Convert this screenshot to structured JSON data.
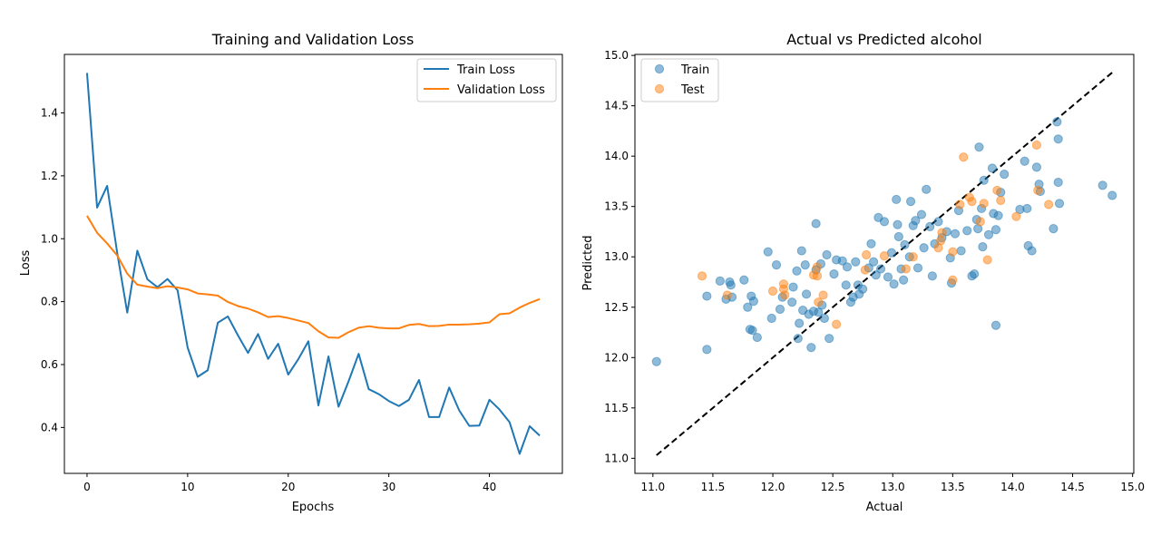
{
  "chart_data": [
    {
      "type": "line",
      "title": "Training and Validation Loss",
      "xlabel": "Epochs",
      "ylabel": "Loss",
      "xlim": [
        -2.25,
        47.25
      ],
      "ylim": [
        0.254,
        1.586
      ],
      "xticks": [
        0,
        10,
        20,
        30,
        40
      ],
      "yticks": [
        0.4,
        0.6,
        0.8,
        1.0,
        1.2,
        1.4
      ],
      "xtick_labels": [
        "0",
        "10",
        "20",
        "30",
        "40"
      ],
      "ytick_labels": [
        "0.4",
        "0.6",
        "0.8",
        "1.0",
        "1.2",
        "1.4"
      ],
      "legend_position": "top-right",
      "x": [
        0,
        1,
        2,
        3,
        4,
        5,
        6,
        7,
        8,
        9,
        10,
        11,
        12,
        13,
        14,
        15,
        16,
        17,
        18,
        19,
        20,
        21,
        22,
        23,
        24,
        25,
        26,
        27,
        28,
        29,
        30,
        31,
        32,
        33,
        34,
        35,
        36,
        37,
        38,
        39,
        40,
        41,
        42,
        43,
        44,
        45
      ],
      "series": [
        {
          "name": "Train Loss",
          "color": "#1f77b4",
          "values": [
            1.527,
            1.099,
            1.168,
            0.955,
            0.765,
            0.962,
            0.871,
            0.846,
            0.872,
            0.836,
            0.654,
            0.561,
            0.582,
            0.733,
            0.753,
            0.693,
            0.637,
            0.697,
            0.618,
            0.666,
            0.568,
            0.617,
            0.674,
            0.47,
            0.626,
            0.466,
            0.547,
            0.634,
            0.522,
            0.506,
            0.484,
            0.468,
            0.488,
            0.551,
            0.433,
            0.433,
            0.527,
            0.454,
            0.405,
            0.406,
            0.488,
            0.457,
            0.417,
            0.316,
            0.404,
            0.374
          ]
        },
        {
          "name": "Validation Loss",
          "color": "#ff7f0e",
          "values": [
            1.073,
            1.019,
            0.985,
            0.947,
            0.889,
            0.854,
            0.848,
            0.843,
            0.849,
            0.845,
            0.839,
            0.826,
            0.823,
            0.819,
            0.799,
            0.786,
            0.778,
            0.766,
            0.751,
            0.754,
            0.748,
            0.74,
            0.732,
            0.706,
            0.686,
            0.685,
            0.703,
            0.717,
            0.722,
            0.717,
            0.715,
            0.715,
            0.726,
            0.729,
            0.722,
            0.723,
            0.727,
            0.727,
            0.728,
            0.73,
            0.734,
            0.76,
            0.763,
            0.781,
            0.796,
            0.808
          ]
        }
      ]
    },
    {
      "type": "scatter",
      "title": "Actual vs Predicted alcohol",
      "xlabel": "Actual",
      "ylabel": "Predicted",
      "xlim": [
        10.85,
        15.01
      ],
      "ylim": [
        10.85,
        15.01
      ],
      "xticks": [
        11.0,
        11.5,
        12.0,
        12.5,
        13.0,
        13.5,
        14.0,
        14.5,
        15.0
      ],
      "yticks": [
        11.0,
        11.5,
        12.0,
        12.5,
        13.0,
        13.5,
        14.0,
        14.5,
        15.0
      ],
      "xtick_labels": [
        "11.0",
        "11.5",
        "12.0",
        "12.5",
        "13.0",
        "13.5",
        "14.0",
        "14.5",
        "15.0"
      ],
      "ytick_labels": [
        "11.0",
        "11.5",
        "12.0",
        "12.5",
        "13.0",
        "13.5",
        "14.0",
        "14.5",
        "15.0"
      ],
      "legend_position": "top-left",
      "reference_line": {
        "from": [
          11.03,
          11.03
        ],
        "to": [
          14.83,
          14.83
        ],
        "style": "dashed",
        "color": "#000000"
      },
      "series": [
        {
          "name": "Train",
          "color": "#1f77b4",
          "points": [
            [
              11.03,
              11.96
            ],
            [
              11.45,
              12.08
            ],
            [
              11.45,
              12.61
            ],
            [
              11.56,
              12.76
            ],
            [
              11.61,
              12.58
            ],
            [
              11.64,
              12.75
            ],
            [
              11.65,
              12.72
            ],
            [
              11.66,
              12.6
            ],
            [
              11.76,
              12.77
            ],
            [
              11.79,
              12.5
            ],
            [
              11.81,
              12.28
            ],
            [
              11.82,
              12.61
            ],
            [
              11.83,
              12.27
            ],
            [
              11.84,
              12.56
            ],
            [
              11.87,
              12.2
            ],
            [
              11.96,
              13.05
            ],
            [
              11.99,
              12.39
            ],
            [
              12.03,
              12.92
            ],
            [
              12.06,
              12.48
            ],
            [
              12.08,
              12.6
            ],
            [
              12.16,
              12.55
            ],
            [
              12.17,
              12.7
            ],
            [
              12.2,
              12.86
            ],
            [
              12.21,
              12.19
            ],
            [
              12.22,
              12.34
            ],
            [
              12.24,
              13.06
            ],
            [
              12.25,
              12.47
            ],
            [
              12.27,
              12.92
            ],
            [
              12.28,
              12.63
            ],
            [
              12.3,
              12.43
            ],
            [
              12.32,
              12.1
            ],
            [
              12.34,
              12.46
            ],
            [
              12.36,
              13.33
            ],
            [
              12.36,
              12.87
            ],
            [
              12.38,
              12.45
            ],
            [
              12.4,
              12.93
            ],
            [
              12.41,
              12.52
            ],
            [
              12.43,
              12.39
            ],
            [
              12.45,
              13.02
            ],
            [
              12.47,
              12.19
            ],
            [
              12.51,
              12.83
            ],
            [
              12.53,
              12.97
            ],
            [
              12.58,
              12.96
            ],
            [
              12.61,
              12.72
            ],
            [
              12.62,
              12.9
            ],
            [
              12.65,
              12.55
            ],
            [
              12.67,
              12.6
            ],
            [
              12.69,
              12.95
            ],
            [
              12.71,
              12.72
            ],
            [
              12.72,
              12.63
            ],
            [
              12.75,
              12.68
            ],
            [
              12.8,
              12.89
            ],
            [
              12.82,
              13.13
            ],
            [
              12.84,
              12.95
            ],
            [
              12.86,
              12.82
            ],
            [
              12.88,
              13.39
            ],
            [
              12.9,
              12.88
            ],
            [
              12.93,
              13.35
            ],
            [
              12.96,
              12.8
            ],
            [
              12.99,
              13.04
            ],
            [
              13.01,
              12.73
            ],
            [
              13.03,
              13.57
            ],
            [
              13.04,
              13.32
            ],
            [
              13.05,
              13.2
            ],
            [
              13.07,
              12.88
            ],
            [
              13.09,
              12.77
            ],
            [
              13.1,
              13.12
            ],
            [
              13.14,
              13.0
            ],
            [
              13.15,
              13.55
            ],
            [
              13.17,
              13.31
            ],
            [
              13.19,
              13.36
            ],
            [
              13.21,
              12.89
            ],
            [
              13.24,
              13.42
            ],
            [
              13.26,
              13.09
            ],
            [
              13.28,
              13.67
            ],
            [
              13.31,
              13.3
            ],
            [
              13.33,
              12.81
            ],
            [
              13.35,
              13.13
            ],
            [
              13.38,
              13.35
            ],
            [
              13.41,
              13.19
            ],
            [
              13.45,
              13.25
            ],
            [
              13.48,
              12.99
            ],
            [
              13.49,
              12.74
            ],
            [
              13.52,
              13.23
            ],
            [
              13.55,
              13.46
            ],
            [
              13.57,
              13.06
            ],
            [
              13.62,
              13.26
            ],
            [
              13.66,
              12.81
            ],
            [
              13.68,
              12.83
            ],
            [
              13.7,
              13.37
            ],
            [
              13.71,
              13.28
            ],
            [
              13.72,
              14.09
            ],
            [
              13.74,
              13.48
            ],
            [
              13.75,
              13.1
            ],
            [
              13.76,
              13.76
            ],
            [
              13.8,
              13.22
            ],
            [
              13.83,
              13.88
            ],
            [
              13.84,
              13.43
            ],
            [
              13.86,
              13.27
            ],
            [
              13.86,
              12.32
            ],
            [
              13.88,
              13.41
            ],
            [
              13.9,
              13.64
            ],
            [
              13.93,
              13.82
            ],
            [
              14.06,
              13.47
            ],
            [
              14.1,
              13.95
            ],
            [
              14.12,
              13.48
            ],
            [
              14.13,
              13.11
            ],
            [
              14.16,
              13.06
            ],
            [
              14.2,
              13.89
            ],
            [
              14.22,
              13.72
            ],
            [
              14.23,
              13.65
            ],
            [
              14.34,
              13.28
            ],
            [
              14.37,
              14.34
            ],
            [
              14.38,
              14.17
            ],
            [
              14.38,
              13.74
            ],
            [
              14.39,
              13.53
            ],
            [
              14.75,
              13.71
            ],
            [
              14.83,
              13.61
            ]
          ]
        },
        {
          "name": "Test",
          "color": "#ff7f0e",
          "points": [
            [
              11.41,
              12.81
            ],
            [
              11.62,
              12.62
            ],
            [
              12.0,
              12.66
            ],
            [
              12.09,
              12.73
            ],
            [
              12.09,
              12.68
            ],
            [
              12.1,
              12.62
            ],
            [
              12.34,
              12.82
            ],
            [
              12.37,
              12.9
            ],
            [
              12.37,
              12.81
            ],
            [
              12.38,
              12.55
            ],
            [
              12.42,
              12.62
            ],
            [
              12.53,
              12.33
            ],
            [
              12.77,
              12.87
            ],
            [
              12.78,
              13.02
            ],
            [
              12.93,
              13.01
            ],
            [
              13.11,
              12.88
            ],
            [
              13.17,
              13.0
            ],
            [
              13.38,
              13.09
            ],
            [
              13.4,
              13.16
            ],
            [
              13.41,
              13.24
            ],
            [
              13.5,
              12.77
            ],
            [
              13.5,
              13.05
            ],
            [
              13.56,
              13.52
            ],
            [
              13.59,
              13.99
            ],
            [
              13.64,
              13.59
            ],
            [
              13.66,
              13.55
            ],
            [
              13.73,
              13.35
            ],
            [
              13.76,
              13.53
            ],
            [
              13.79,
              12.97
            ],
            [
              13.87,
              13.66
            ],
            [
              13.9,
              13.56
            ],
            [
              14.03,
              13.4
            ],
            [
              14.2,
              14.11
            ],
            [
              14.21,
              13.66
            ],
            [
              14.3,
              13.52
            ]
          ]
        }
      ]
    }
  ]
}
